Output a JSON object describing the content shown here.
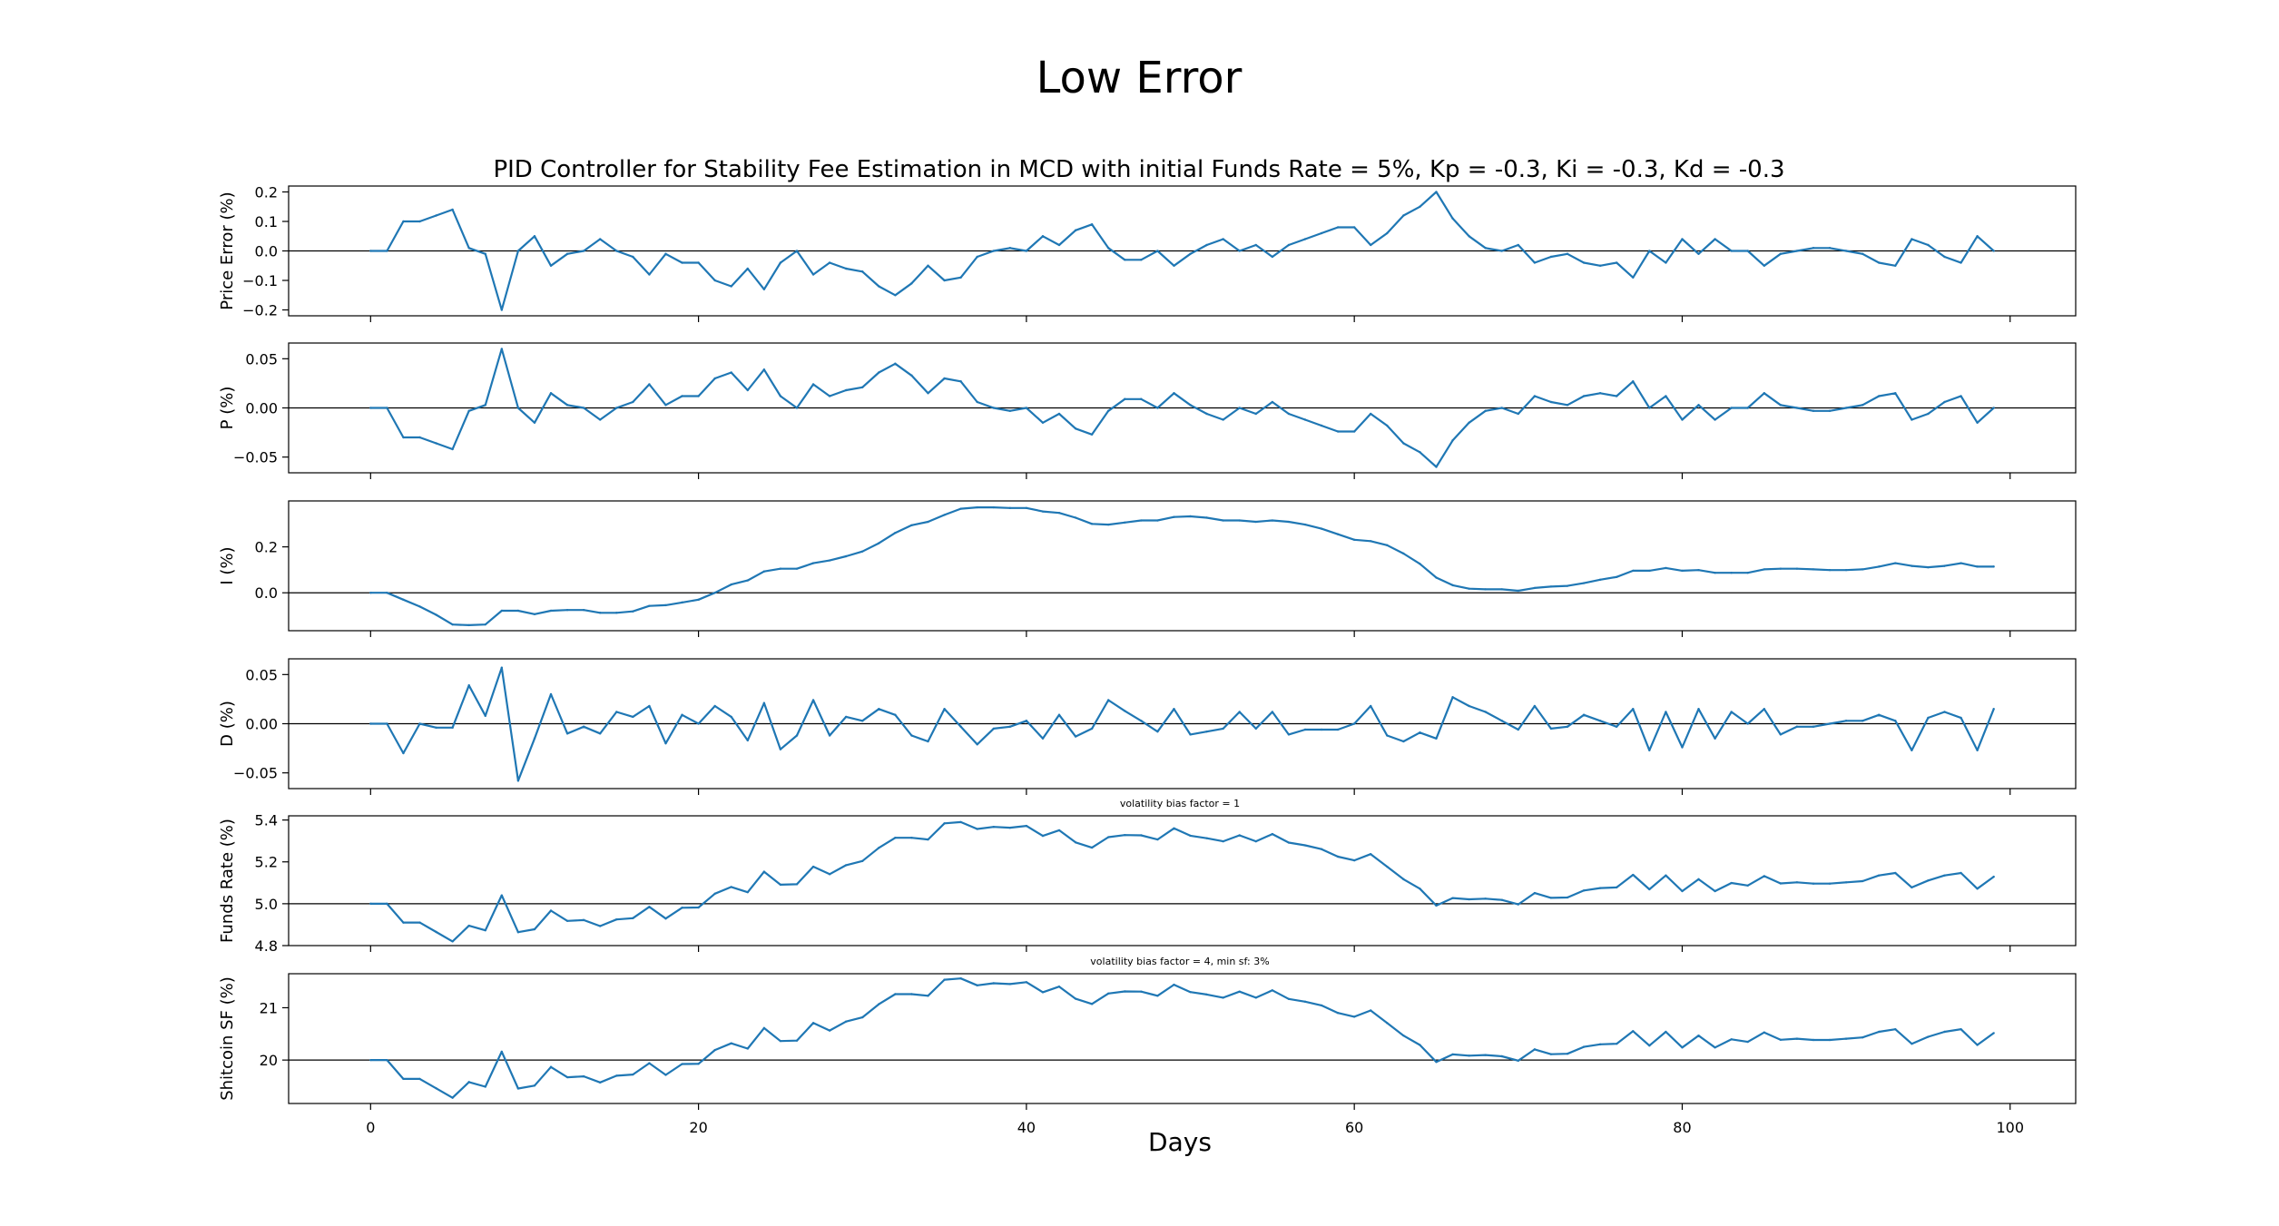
{
  "figure": {
    "suptitle": "Low Error",
    "title": "PID Controller for Stability Fee Estimation in MCD with initial Funds Rate = 5%, Kp = -0.3, Ki = -0.3, Kd = -0.3",
    "xlabel": "Days",
    "line_color": "#1f77b4"
  },
  "chart_data": [
    {
      "type": "line",
      "name": "price-error",
      "ylabel": "Price Error (%)",
      "annotation": "",
      "ylim": [
        -0.22,
        0.22
      ],
      "yticks": [
        -0.2,
        -0.1,
        0.0,
        0.1,
        0.2
      ],
      "ytick_labels": [
        "−0.2",
        "−0.1",
        "0.0",
        "0.1",
        "0.2"
      ],
      "baseline": 0,
      "x": [
        0,
        1,
        2,
        3,
        4,
        5,
        6,
        7,
        8,
        9,
        10,
        11,
        12,
        13,
        14,
        15,
        16,
        17,
        18,
        19,
        20,
        21,
        22,
        23,
        24,
        25,
        26,
        27,
        28,
        29,
        30,
        31,
        32,
        33,
        34,
        35,
        36,
        37,
        38,
        39,
        40,
        41,
        42,
        43,
        44,
        45,
        46,
        47,
        48,
        49,
        50,
        51,
        52,
        53,
        54,
        55,
        56,
        57,
        58,
        59,
        60,
        61,
        62,
        63,
        64,
        65,
        66,
        67,
        68,
        69,
        70,
        71,
        72,
        73,
        74,
        75,
        76,
        77,
        78,
        79,
        80,
        81,
        82,
        83,
        84,
        85,
        86,
        87,
        88,
        89,
        90,
        91,
        92,
        93,
        94,
        95,
        96,
        97,
        98,
        99
      ],
      "values": [
        0,
        0,
        0.1,
        0.1,
        0.12,
        0.14,
        0.01,
        -0.01,
        -0.2,
        0,
        0.05,
        -0.05,
        -0.01,
        0,
        0.04,
        0,
        -0.02,
        -0.08,
        -0.01,
        -0.04,
        -0.04,
        -0.1,
        -0.12,
        -0.06,
        -0.13,
        -0.04,
        0,
        -0.08,
        -0.04,
        -0.06,
        -0.07,
        -0.12,
        -0.15,
        -0.11,
        -0.05,
        -0.1,
        -0.09,
        -0.02,
        0,
        0.01,
        0,
        0.05,
        0.02,
        0.07,
        0.09,
        0.01,
        -0.03,
        -0.03,
        0,
        -0.05,
        -0.01,
        0.02,
        0.04,
        0,
        0.02,
        -0.02,
        0.02,
        0.04,
        0.06,
        0.08,
        0.08,
        0.02,
        0.06,
        0.12,
        0.15,
        0.2,
        0.11,
        0.05,
        0.01,
        0,
        0.02,
        -0.04,
        -0.02,
        -0.01,
        -0.04,
        -0.05,
        -0.04,
        -0.09,
        0,
        -0.04,
        0.04,
        -0.01,
        0.04,
        0,
        0,
        -0.05,
        -0.01,
        0,
        0.01,
        0.01,
        0,
        -0.01,
        -0.04,
        -0.05,
        0.04,
        0.02,
        -0.02,
        -0.04,
        0.05,
        0
      ]
    },
    {
      "type": "line",
      "name": "p-term",
      "ylabel": "P (%)",
      "annotation": "",
      "ylim": [
        -0.066,
        0.066
      ],
      "yticks": [
        -0.05,
        0.0,
        0.05
      ],
      "ytick_labels": [
        "−0.05",
        "0.00",
        "0.05"
      ],
      "baseline": 0,
      "x": [
        0,
        1,
        2,
        3,
        4,
        5,
        6,
        7,
        8,
        9,
        10,
        11,
        12,
        13,
        14,
        15,
        16,
        17,
        18,
        19,
        20,
        21,
        22,
        23,
        24,
        25,
        26,
        27,
        28,
        29,
        30,
        31,
        32,
        33,
        34,
        35,
        36,
        37,
        38,
        39,
        40,
        41,
        42,
        43,
        44,
        45,
        46,
        47,
        48,
        49,
        50,
        51,
        52,
        53,
        54,
        55,
        56,
        57,
        58,
        59,
        60,
        61,
        62,
        63,
        64,
        65,
        66,
        67,
        68,
        69,
        70,
        71,
        72,
        73,
        74,
        75,
        76,
        77,
        78,
        79,
        80,
        81,
        82,
        83,
        84,
        85,
        86,
        87,
        88,
        89,
        90,
        91,
        92,
        93,
        94,
        95,
        96,
        97,
        98,
        99
      ],
      "values": [
        0,
        0,
        -0.03,
        -0.03,
        -0.036,
        -0.042,
        -0.003,
        0.003,
        0.06,
        0,
        -0.015,
        0.015,
        0.003,
        0,
        -0.012,
        0,
        0.006,
        0.024,
        0.003,
        0.012,
        0.012,
        0.03,
        0.036,
        0.018,
        0.039,
        0.012,
        0,
        0.024,
        0.012,
        0.018,
        0.021,
        0.036,
        0.045,
        0.033,
        0.015,
        0.03,
        0.027,
        0.006,
        0,
        -0.003,
        0,
        -0.015,
        -0.006,
        -0.021,
        -0.027,
        -0.003,
        0.009,
        0.009,
        0,
        0.015,
        0.003,
        -0.006,
        -0.012,
        0,
        -0.006,
        0.006,
        -0.006,
        -0.012,
        -0.018,
        -0.024,
        -0.024,
        -0.006,
        -0.018,
        -0.036,
        -0.045,
        -0.06,
        -0.033,
        -0.015,
        -0.003,
        0,
        -0.006,
        0.012,
        0.006,
        0.003,
        0.012,
        0.015,
        0.012,
        0.027,
        0,
        0.012,
        -0.012,
        0.003,
        -0.012,
        0,
        0,
        0.015,
        0.003,
        0,
        -0.003,
        -0.003,
        0,
        0.003,
        0.012,
        0.015,
        -0.012,
        -0.006,
        0.006,
        0.012,
        -0.015,
        0
      ]
    },
    {
      "type": "line",
      "name": "i-term",
      "ylabel": "I (%)",
      "annotation": "",
      "ylim": [
        -0.165,
        0.4
      ],
      "yticks": [
        0.0,
        0.2
      ],
      "ytick_labels": [
        "0.0",
        "0.2"
      ],
      "baseline": 0,
      "x": [
        0,
        1,
        2,
        3,
        4,
        5,
        6,
        7,
        8,
        9,
        10,
        11,
        12,
        13,
        14,
        15,
        16,
        17,
        18,
        19,
        20,
        21,
        22,
        23,
        24,
        25,
        26,
        27,
        28,
        29,
        30,
        31,
        32,
        33,
        34,
        35,
        36,
        37,
        38,
        39,
        40,
        41,
        42,
        43,
        44,
        45,
        46,
        47,
        48,
        49,
        50,
        51,
        52,
        53,
        54,
        55,
        56,
        57,
        58,
        59,
        60,
        61,
        62,
        63,
        64,
        65,
        66,
        67,
        68,
        69,
        70,
        71,
        72,
        73,
        74,
        75,
        76,
        77,
        78,
        79,
        80,
        81,
        82,
        83,
        84,
        85,
        86,
        87,
        88,
        89,
        90,
        91,
        92,
        93,
        94,
        95,
        96,
        97,
        98,
        99
      ],
      "values": [
        0,
        0,
        -0.03,
        -0.06,
        -0.096,
        -0.138,
        -0.141,
        -0.138,
        -0.078,
        -0.078,
        -0.093,
        -0.078,
        -0.075,
        -0.075,
        -0.087,
        -0.087,
        -0.081,
        -0.057,
        -0.054,
        -0.042,
        -0.03,
        0,
        0.036,
        0.054,
        0.093,
        0.105,
        0.105,
        0.129,
        0.141,
        0.159,
        0.18,
        0.216,
        0.261,
        0.294,
        0.309,
        0.339,
        0.366,
        0.372,
        0.372,
        0.369,
        0.369,
        0.354,
        0.348,
        0.327,
        0.3,
        0.297,
        0.306,
        0.315,
        0.315,
        0.33,
        0.333,
        0.327,
        0.315,
        0.315,
        0.309,
        0.315,
        0.309,
        0.297,
        0.279,
        0.255,
        0.231,
        0.225,
        0.207,
        0.171,
        0.126,
        0.066,
        0.033,
        0.018,
        0.015,
        0.015,
        0.009,
        0.021,
        0.027,
        0.03,
        0.042,
        0.057,
        0.069,
        0.096,
        0.096,
        0.108,
        0.096,
        0.099,
        0.087,
        0.087,
        0.087,
        0.102,
        0.105,
        0.105,
        0.102,
        0.099,
        0.099,
        0.102,
        0.114,
        0.129,
        0.117,
        0.111,
        0.117,
        0.129,
        0.114,
        0.114
      ]
    },
    {
      "type": "line",
      "name": "d-term",
      "ylabel": "D (%)",
      "annotation": "",
      "ylim": [
        -0.066,
        0.066
      ],
      "yticks": [
        -0.05,
        0.0,
        0.05
      ],
      "ytick_labels": [
        "−0.05",
        "0.00",
        "0.05"
      ],
      "baseline": 0,
      "x": [
        0,
        1,
        2,
        3,
        4,
        5,
        6,
        7,
        8,
        9,
        10,
        11,
        12,
        13,
        14,
        15,
        16,
        17,
        18,
        19,
        20,
        21,
        22,
        23,
        24,
        25,
        26,
        27,
        28,
        29,
        30,
        31,
        32,
        33,
        34,
        35,
        36,
        37,
        38,
        39,
        40,
        41,
        42,
        43,
        44,
        45,
        46,
        47,
        48,
        49,
        50,
        51,
        52,
        53,
        54,
        55,
        56,
        57,
        58,
        59,
        60,
        61,
        62,
        63,
        64,
        65,
        66,
        67,
        68,
        69,
        70,
        71,
        72,
        73,
        74,
        75,
        76,
        77,
        78,
        79,
        80,
        81,
        82,
        83,
        84,
        85,
        86,
        87,
        88,
        89,
        90,
        91,
        92,
        93,
        94,
        95,
        96,
        97,
        98,
        99
      ],
      "values": [
        0,
        0,
        -0.03,
        0,
        -0.004,
        -0.004,
        0.039,
        0.008,
        0.057,
        -0.058,
        -0.015,
        0.03,
        -0.01,
        -0.003,
        -0.01,
        0.012,
        0.007,
        0.018,
        -0.02,
        0.009,
        0,
        0.018,
        0.007,
        -0.017,
        0.021,
        -0.026,
        -0.012,
        0.024,
        -0.012,
        0.007,
        0.003,
        0.015,
        0.009,
        -0.012,
        -0.018,
        0.015,
        -0.003,
        -0.021,
        -0.005,
        -0.003,
        0.003,
        -0.015,
        0.009,
        -0.013,
        -0.005,
        0.024,
        0.013,
        0.003,
        -0.008,
        0.015,
        -0.011,
        -0.008,
        -0.005,
        0.012,
        -0.005,
        0.012,
        -0.011,
        -0.006,
        -0.006,
        -0.006,
        0,
        0.018,
        -0.012,
        -0.018,
        -0.009,
        -0.015,
        0.027,
        0.018,
        0.012,
        0.003,
        -0.006,
        0.018,
        -0.005,
        -0.003,
        0.009,
        0.003,
        -0.003,
        0.015,
        -0.027,
        0.012,
        -0.024,
        0.015,
        -0.015,
        0.012,
        0,
        0.015,
        -0.011,
        -0.003,
        -0.003,
        0,
        0.003,
        0.003,
        0.009,
        0.003,
        -0.027,
        0.006,
        0.012,
        0.006,
        -0.027,
        0.015
      ]
    },
    {
      "type": "line",
      "name": "funds-rate",
      "ylabel": "Funds Rate (%)",
      "annotation": "volatility bias factor = 1",
      "ylim": [
        4.8,
        5.42
      ],
      "yticks": [
        4.8,
        5.0,
        5.2,
        5.4
      ],
      "ytick_labels": [
        "4.8",
        "5.0",
        "5.2",
        "5.4"
      ],
      "baseline": 5.0,
      "x": [
        0,
        1,
        2,
        3,
        4,
        5,
        6,
        7,
        8,
        9,
        10,
        11,
        12,
        13,
        14,
        15,
        16,
        17,
        18,
        19,
        20,
        21,
        22,
        23,
        24,
        25,
        26,
        27,
        28,
        29,
        30,
        31,
        32,
        33,
        34,
        35,
        36,
        37,
        38,
        39,
        40,
        41,
        42,
        43,
        44,
        45,
        46,
        47,
        48,
        49,
        50,
        51,
        52,
        53,
        54,
        55,
        56,
        57,
        58,
        59,
        60,
        61,
        62,
        63,
        64,
        65,
        66,
        67,
        68,
        69,
        70,
        71,
        72,
        73,
        74,
        75,
        76,
        77,
        78,
        79,
        80,
        81,
        82,
        83,
        84,
        85,
        86,
        87,
        88,
        89,
        90,
        91,
        92,
        93,
        94,
        95,
        96,
        97,
        98,
        99
      ],
      "values": [
        5.0,
        5.0,
        4.91,
        4.91,
        4.865,
        4.82,
        4.895,
        4.873,
        5.04,
        4.864,
        4.878,
        4.967,
        4.918,
        4.922,
        4.893,
        4.925,
        4.931,
        4.985,
        4.929,
        4.981,
        4.982,
        5.048,
        5.08,
        5.055,
        5.153,
        5.091,
        5.093,
        5.177,
        5.141,
        5.184,
        5.204,
        5.267,
        5.315,
        5.315,
        5.307,
        5.384,
        5.39,
        5.357,
        5.367,
        5.363,
        5.372,
        5.324,
        5.351,
        5.293,
        5.268,
        5.318,
        5.328,
        5.327,
        5.307,
        5.36,
        5.325,
        5.313,
        5.298,
        5.327,
        5.298,
        5.333,
        5.292,
        5.279,
        5.261,
        5.225,
        5.207,
        5.237,
        5.177,
        5.117,
        5.072,
        4.991,
        5.027,
        5.021,
        5.024,
        5.018,
        4.997,
        5.051,
        5.028,
        5.03,
        5.063,
        5.075,
        5.078,
        5.138,
        5.069,
        5.135,
        5.06,
        5.117,
        5.06,
        5.099,
        5.087,
        5.132,
        5.097,
        5.102,
        5.096,
        5.096,
        5.102,
        5.108,
        5.135,
        5.147,
        5.078,
        5.111,
        5.135,
        5.147,
        5.072,
        5.129
      ]
    },
    {
      "type": "line",
      "name": "shitcoin-sf",
      "ylabel": "Shitcoin SF (%)",
      "annotation": "volatility bias factor = 4, min sf: 3%",
      "ylim": [
        19.17,
        21.65
      ],
      "yticks": [
        20,
        21
      ],
      "ytick_labels": [
        "20",
        "21"
      ],
      "baseline": 20,
      "x": [
        0,
        1,
        2,
        3,
        4,
        5,
        6,
        7,
        8,
        9,
        10,
        11,
        12,
        13,
        14,
        15,
        16,
        17,
        18,
        19,
        20,
        21,
        22,
        23,
        24,
        25,
        26,
        27,
        28,
        29,
        30,
        31,
        32,
        33,
        34,
        35,
        36,
        37,
        38,
        39,
        40,
        41,
        42,
        43,
        44,
        45,
        46,
        47,
        48,
        49,
        50,
        51,
        52,
        53,
        54,
        55,
        56,
        57,
        58,
        59,
        60,
        61,
        62,
        63,
        64,
        65,
        66,
        67,
        68,
        69,
        70,
        71,
        72,
        73,
        74,
        75,
        76,
        77,
        78,
        79,
        80,
        81,
        82,
        83,
        84,
        85,
        86,
        87,
        88,
        89,
        90,
        91,
        92,
        93,
        94,
        95,
        96,
        97,
        98,
        99
      ],
      "values": [
        20.0,
        20.0,
        19.64,
        19.64,
        19.46,
        19.28,
        19.58,
        19.49,
        20.16,
        19.456,
        19.512,
        19.868,
        19.672,
        19.688,
        19.572,
        19.7,
        19.724,
        19.94,
        19.716,
        19.924,
        19.928,
        20.192,
        20.32,
        20.22,
        20.612,
        20.364,
        20.372,
        20.708,
        20.564,
        20.736,
        20.816,
        21.068,
        21.26,
        21.26,
        21.228,
        21.536,
        21.56,
        21.428,
        21.468,
        21.452,
        21.488,
        21.296,
        21.404,
        21.172,
        21.072,
        21.272,
        21.312,
        21.308,
        21.228,
        21.44,
        21.3,
        21.252,
        21.192,
        21.308,
        21.192,
        21.332,
        21.168,
        21.116,
        21.044,
        20.9,
        20.828,
        20.948,
        20.708,
        20.468,
        20.288,
        19.964,
        20.108,
        20.084,
        20.096,
        20.072,
        19.988,
        20.204,
        20.112,
        20.12,
        20.252,
        20.3,
        20.312,
        20.552,
        20.276,
        20.54,
        20.24,
        20.468,
        20.24,
        20.396,
        20.348,
        20.528,
        20.388,
        20.408,
        20.384,
        20.384,
        20.408,
        20.432,
        20.54,
        20.588,
        20.312,
        20.444,
        20.54,
        20.588,
        20.288,
        20.516
      ]
    }
  ],
  "x_axis": {
    "xlim": [
      -5,
      104
    ],
    "xticks": [
      0,
      20,
      40,
      60,
      80,
      100
    ],
    "xtick_labels": [
      "0",
      "20",
      "40",
      "60",
      "80",
      "100"
    ]
  }
}
